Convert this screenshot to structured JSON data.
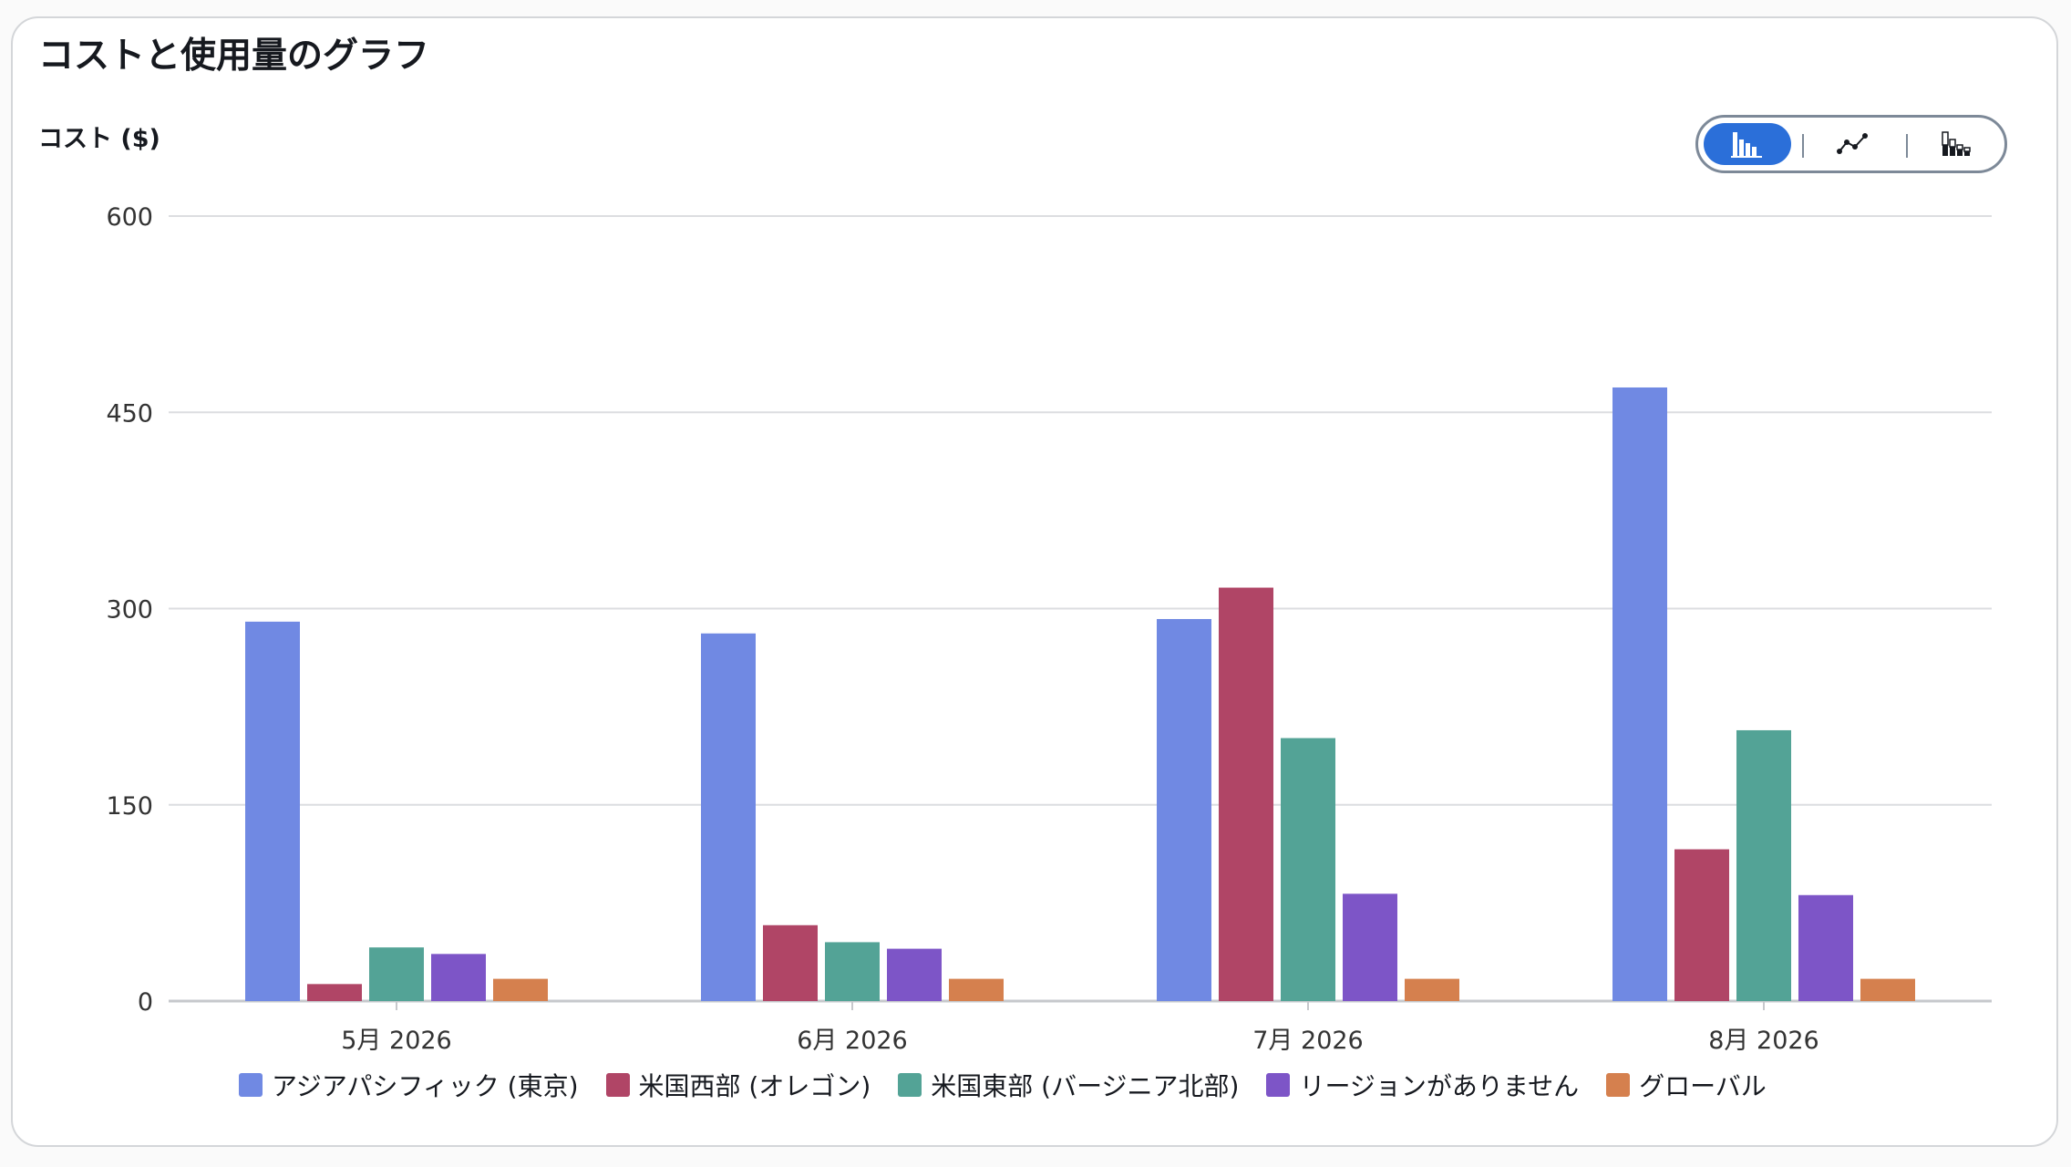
{
  "title": "コストと使用量のグラフ",
  "toggle": {
    "options": [
      {
        "icon": "grouped-bar-chart-icon",
        "active": true
      },
      {
        "icon": "line-chart-icon",
        "active": false
      },
      {
        "icon": "stacked-bar-chart-icon",
        "active": false
      }
    ],
    "active_color": "#2b6fd9"
  },
  "chart_data": {
    "type": "bar",
    "title": "",
    "ylabel": "コスト ($)",
    "xlabel": "",
    "ylim": [
      0,
      600
    ],
    "yticks": [
      0,
      150,
      300,
      450,
      600
    ],
    "grid": true,
    "legend_position": "bottom",
    "categories": [
      "5月 2026",
      "6月 2026",
      "7月 2026",
      "8月 2026"
    ],
    "series": [
      {
        "name": "アジアパシフィック (東京)",
        "color": "#7089e3",
        "values": [
          290,
          281,
          292,
          469
        ]
      },
      {
        "name": "米国西部 (オレゴン)",
        "color": "#b04566",
        "values": [
          13,
          58,
          316,
          116
        ]
      },
      {
        "name": "米国東部 (バージニア北部)",
        "color": "#53a396",
        "values": [
          41,
          45,
          201,
          207
        ]
      },
      {
        "name": "リージョンがありません",
        "color": "#7d55c7",
        "values": [
          36,
          40,
          82,
          81
        ]
      },
      {
        "name": "グローバル",
        "color": "#d5804e",
        "values": [
          17,
          17,
          17,
          17
        ]
      }
    ]
  }
}
